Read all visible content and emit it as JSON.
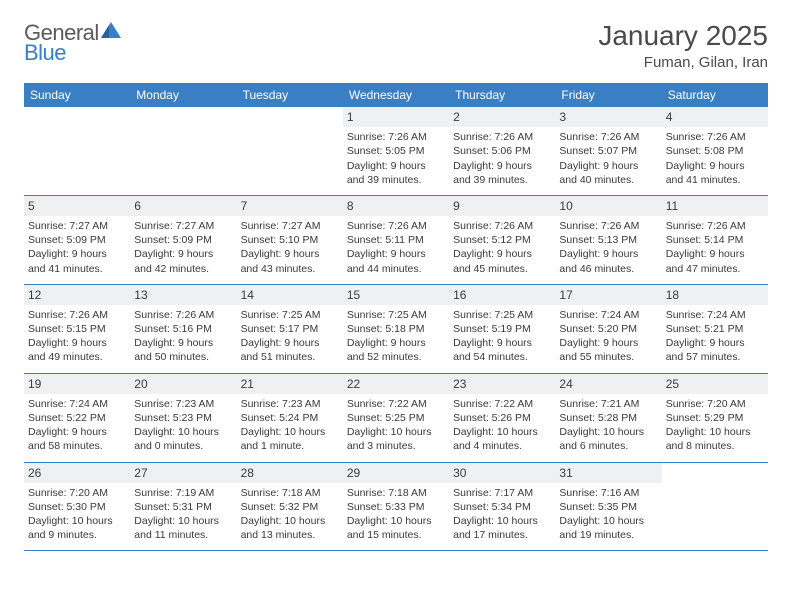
{
  "logo": {
    "part1": "General",
    "part2": "Blue"
  },
  "title": "January 2025",
  "location": "Fuman, Gilan, Iran",
  "colors": {
    "header_bg": "#3a7fc4",
    "header_text": "#ffffff",
    "daynum_bg": "#eef0f2",
    "border": "#3a7fc4",
    "text": "#3a3a3a",
    "title_text": "#4a4a4a"
  },
  "daysOfWeek": [
    "Sunday",
    "Monday",
    "Tuesday",
    "Wednesday",
    "Thursday",
    "Friday",
    "Saturday"
  ],
  "weeks": [
    [
      {
        "n": "",
        "sr": "",
        "ss": "",
        "dl": ""
      },
      {
        "n": "",
        "sr": "",
        "ss": "",
        "dl": ""
      },
      {
        "n": "",
        "sr": "",
        "ss": "",
        "dl": ""
      },
      {
        "n": "1",
        "sr": "7:26 AM",
        "ss": "5:05 PM",
        "dl": "9 hours and 39 minutes."
      },
      {
        "n": "2",
        "sr": "7:26 AM",
        "ss": "5:06 PM",
        "dl": "9 hours and 39 minutes."
      },
      {
        "n": "3",
        "sr": "7:26 AM",
        "ss": "5:07 PM",
        "dl": "9 hours and 40 minutes."
      },
      {
        "n": "4",
        "sr": "7:26 AM",
        "ss": "5:08 PM",
        "dl": "9 hours and 41 minutes."
      }
    ],
    [
      {
        "n": "5",
        "sr": "7:27 AM",
        "ss": "5:09 PM",
        "dl": "9 hours and 41 minutes."
      },
      {
        "n": "6",
        "sr": "7:27 AM",
        "ss": "5:09 PM",
        "dl": "9 hours and 42 minutes."
      },
      {
        "n": "7",
        "sr": "7:27 AM",
        "ss": "5:10 PM",
        "dl": "9 hours and 43 minutes."
      },
      {
        "n": "8",
        "sr": "7:26 AM",
        "ss": "5:11 PM",
        "dl": "9 hours and 44 minutes."
      },
      {
        "n": "9",
        "sr": "7:26 AM",
        "ss": "5:12 PM",
        "dl": "9 hours and 45 minutes."
      },
      {
        "n": "10",
        "sr": "7:26 AM",
        "ss": "5:13 PM",
        "dl": "9 hours and 46 minutes."
      },
      {
        "n": "11",
        "sr": "7:26 AM",
        "ss": "5:14 PM",
        "dl": "9 hours and 47 minutes."
      }
    ],
    [
      {
        "n": "12",
        "sr": "7:26 AM",
        "ss": "5:15 PM",
        "dl": "9 hours and 49 minutes."
      },
      {
        "n": "13",
        "sr": "7:26 AM",
        "ss": "5:16 PM",
        "dl": "9 hours and 50 minutes."
      },
      {
        "n": "14",
        "sr": "7:25 AM",
        "ss": "5:17 PM",
        "dl": "9 hours and 51 minutes."
      },
      {
        "n": "15",
        "sr": "7:25 AM",
        "ss": "5:18 PM",
        "dl": "9 hours and 52 minutes."
      },
      {
        "n": "16",
        "sr": "7:25 AM",
        "ss": "5:19 PM",
        "dl": "9 hours and 54 minutes."
      },
      {
        "n": "17",
        "sr": "7:24 AM",
        "ss": "5:20 PM",
        "dl": "9 hours and 55 minutes."
      },
      {
        "n": "18",
        "sr": "7:24 AM",
        "ss": "5:21 PM",
        "dl": "9 hours and 57 minutes."
      }
    ],
    [
      {
        "n": "19",
        "sr": "7:24 AM",
        "ss": "5:22 PM",
        "dl": "9 hours and 58 minutes."
      },
      {
        "n": "20",
        "sr": "7:23 AM",
        "ss": "5:23 PM",
        "dl": "10 hours and 0 minutes."
      },
      {
        "n": "21",
        "sr": "7:23 AM",
        "ss": "5:24 PM",
        "dl": "10 hours and 1 minute."
      },
      {
        "n": "22",
        "sr": "7:22 AM",
        "ss": "5:25 PM",
        "dl": "10 hours and 3 minutes."
      },
      {
        "n": "23",
        "sr": "7:22 AM",
        "ss": "5:26 PM",
        "dl": "10 hours and 4 minutes."
      },
      {
        "n": "24",
        "sr": "7:21 AM",
        "ss": "5:28 PM",
        "dl": "10 hours and 6 minutes."
      },
      {
        "n": "25",
        "sr": "7:20 AM",
        "ss": "5:29 PM",
        "dl": "10 hours and 8 minutes."
      }
    ],
    [
      {
        "n": "26",
        "sr": "7:20 AM",
        "ss": "5:30 PM",
        "dl": "10 hours and 9 minutes."
      },
      {
        "n": "27",
        "sr": "7:19 AM",
        "ss": "5:31 PM",
        "dl": "10 hours and 11 minutes."
      },
      {
        "n": "28",
        "sr": "7:18 AM",
        "ss": "5:32 PM",
        "dl": "10 hours and 13 minutes."
      },
      {
        "n": "29",
        "sr": "7:18 AM",
        "ss": "5:33 PM",
        "dl": "10 hours and 15 minutes."
      },
      {
        "n": "30",
        "sr": "7:17 AM",
        "ss": "5:34 PM",
        "dl": "10 hours and 17 minutes."
      },
      {
        "n": "31",
        "sr": "7:16 AM",
        "ss": "5:35 PM",
        "dl": "10 hours and 19 minutes."
      },
      {
        "n": "",
        "sr": "",
        "ss": "",
        "dl": ""
      }
    ]
  ],
  "labels": {
    "sunrise": "Sunrise:",
    "sunset": "Sunset:",
    "daylight": "Daylight:"
  }
}
